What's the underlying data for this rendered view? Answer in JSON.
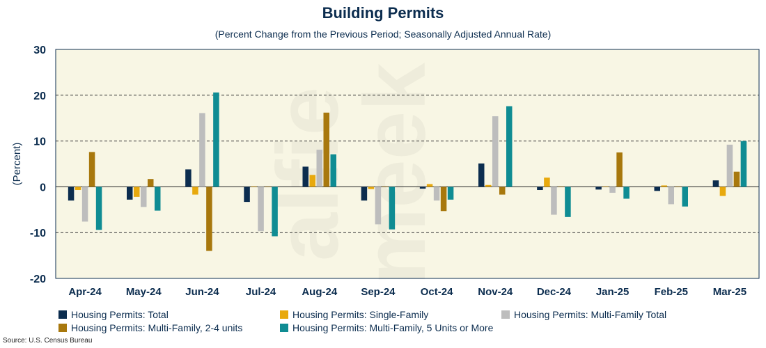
{
  "colors": {
    "total": "#0c2d4f",
    "single_family": "#e8a90d",
    "multi_family_total": "#bdbdbd",
    "multi_family_2_4": "#a8780d",
    "multi_family_5_plus": "#0f8c93",
    "plot_background": "#f8f6e4",
    "title": "#0c2d4f"
  },
  "watermark": "alfie meek",
  "chart_data": {
    "type": "bar",
    "title": "Building Permits",
    "subtitle": "(Percent Change from the Previous Period; Seasonally Adjusted Annual Rate)",
    "ylabel": "(Percent)",
    "xlabel": "",
    "ylim": [
      -20,
      30
    ],
    "yticks": [
      30,
      20,
      10,
      0,
      -10,
      -20
    ],
    "grid": "horizontal dashed",
    "legend_position": "bottom",
    "categories": [
      "Apr-24",
      "May-24",
      "Jun-24",
      "Jul-24",
      "Aug-24",
      "Sep-24",
      "Oct-24",
      "Nov-24",
      "Dec-24",
      "Jan-25",
      "Feb-25",
      "Mar-25"
    ],
    "series": [
      {
        "name": "Housing Permits: Total",
        "color_key": "total",
        "values": [
          -3.0,
          -2.8,
          3.8,
          -3.3,
          4.4,
          -3.0,
          -0.4,
          5.1,
          -0.7,
          -0.6,
          -0.9,
          1.4
        ]
      },
      {
        "name": "Housing Permits: Single-Family",
        "color_key": "single_family",
        "values": [
          -0.7,
          -2.2,
          -1.7,
          0.1,
          2.6,
          -0.5,
          0.6,
          0.4,
          2.0,
          0.0,
          0.3,
          -2.0
        ]
      },
      {
        "name": "Housing Permits: Multi-Family Total",
        "color_key": "multi_family_total",
        "values": [
          -7.6,
          -4.4,
          16.1,
          -9.7,
          8.1,
          -8.2,
          -3.0,
          15.4,
          -6.1,
          -1.3,
          -3.8,
          9.2
        ]
      },
      {
        "name": "Housing Permits: Multi-Family, 2-4 units",
        "color_key": "multi_family_2_4",
        "values": [
          7.6,
          1.7,
          -14.0,
          0.0,
          16.2,
          0.0,
          -5.3,
          -1.7,
          0.0,
          7.5,
          0.0,
          3.3
        ]
      },
      {
        "name": "Housing Permits: Multi-Family, 5 Units or More",
        "color_key": "multi_family_5_plus",
        "values": [
          -9.4,
          -5.2,
          20.6,
          -10.8,
          7.1,
          -9.3,
          -2.8,
          17.6,
          -6.6,
          -2.6,
          -4.3,
          10.0
        ]
      }
    ],
    "source": "Source: U.S. Census Bureau"
  }
}
